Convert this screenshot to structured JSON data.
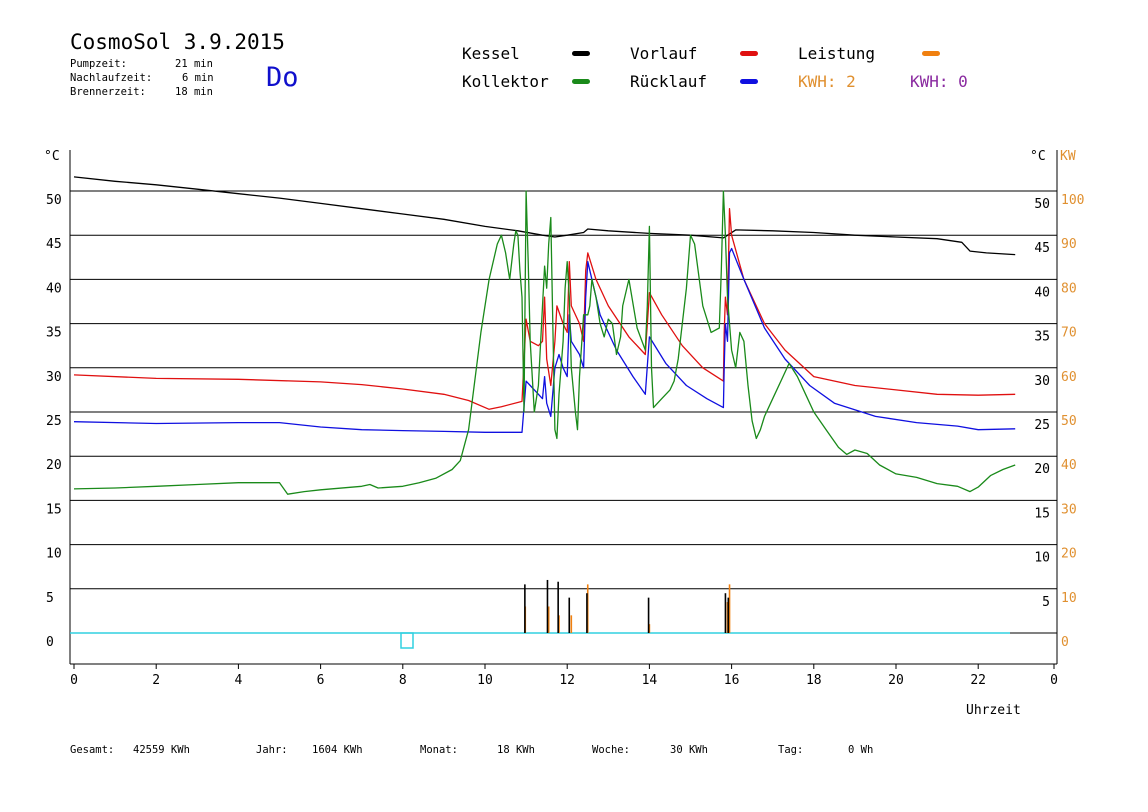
{
  "header": {
    "title": "CosmoSol 3.9.2015",
    "day": "Do",
    "stats": [
      {
        "label": "Pumpzeit:",
        "value": "21 min"
      },
      {
        "label": "Nachlaufzeit:",
        "value": "6 min"
      },
      {
        "label": "Brennerzeit:",
        "value": "18 min"
      }
    ]
  },
  "legend": {
    "kessel": {
      "label": "Kessel",
      "color": "#000000"
    },
    "vorlauf": {
      "label": "Vorlauf",
      "color": "#e01010"
    },
    "leistung": {
      "label": "Leistung",
      "color": "#f08010"
    },
    "kollektor": {
      "label": "Kollektor",
      "color": "#1a8a1a"
    },
    "ruecklauf": {
      "label": "Rücklauf",
      "color": "#1010e0"
    },
    "kwh_orange": {
      "label": "KWH: 2",
      "color": "#e09030"
    },
    "kwh_purple": {
      "label": "KWH: 0",
      "color": "#8a2aa0"
    }
  },
  "footer": {
    "gesamt": {
      "label": "Gesamt:",
      "value": "42559 KWh"
    },
    "jahr": {
      "label": "Jahr:",
      "value": "1604 KWh"
    },
    "monat": {
      "label": "Monat:",
      "value": "18 KWh"
    },
    "woche": {
      "label": "Woche:",
      "value": "30 KWh"
    },
    "tag": {
      "label": "Tag:",
      "value": "0 Wh"
    }
  },
  "chart_data": {
    "type": "line",
    "xlabel": "Uhrzeit",
    "left_unit": "°C",
    "right_unit_c": "°C",
    "right_unit_kw": "KW",
    "xlim": [
      0,
      23
    ],
    "ylim": [
      0,
      50
    ],
    "right_kw_lim": [
      0,
      100
    ],
    "x_ticks": [
      "0",
      "2",
      "4",
      "6",
      "8",
      "10",
      "12",
      "14",
      "16",
      "18",
      "20",
      "22",
      "0"
    ],
    "x_tick_values": [
      0,
      2,
      4,
      6,
      8,
      10,
      12,
      14,
      16,
      18,
      20,
      22,
      23.5
    ],
    "y_ticks": [
      "0",
      "5",
      "10",
      "15",
      "20",
      "25",
      "30",
      "35",
      "40",
      "45",
      "50"
    ],
    "y_tick_values": [
      0,
      5,
      10,
      15,
      20,
      25,
      30,
      35,
      40,
      45,
      50
    ],
    "right_c_ticks": [
      "5",
      "10",
      "15",
      "20",
      "25",
      "30",
      "35",
      "40",
      "45",
      "50"
    ],
    "right_c_tick_values": [
      5,
      10,
      15,
      20,
      25,
      30,
      35,
      40,
      45,
      50
    ],
    "right_kw_ticks": [
      "0",
      "10",
      "20",
      "30",
      "40",
      "50",
      "60",
      "70",
      "80",
      "90",
      "100"
    ],
    "grid": true,
    "series": [
      {
        "name": "Kessel",
        "color": "#000000",
        "points": [
          [
            0,
            51.6
          ],
          [
            1,
            51.1
          ],
          [
            2,
            50.7
          ],
          [
            3,
            50.2
          ],
          [
            4,
            49.7
          ],
          [
            5,
            49.2
          ],
          [
            6,
            48.6
          ],
          [
            7,
            48
          ],
          [
            8,
            47.4
          ],
          [
            9,
            46.8
          ],
          [
            10,
            46
          ],
          [
            10.8,
            45.5
          ],
          [
            11.4,
            45
          ],
          [
            11.7,
            44.8
          ],
          [
            12,
            45
          ],
          [
            12.4,
            45.3
          ],
          [
            12.5,
            45.7
          ],
          [
            13,
            45.5
          ],
          [
            14,
            45.2
          ],
          [
            15,
            45
          ],
          [
            15.8,
            44.7
          ],
          [
            16.1,
            45.6
          ],
          [
            17,
            45.5
          ],
          [
            18,
            45.3
          ],
          [
            19,
            45
          ],
          [
            20,
            44.8
          ],
          [
            21,
            44.6
          ],
          [
            21.6,
            44.2
          ],
          [
            21.8,
            43.2
          ],
          [
            22.2,
            43
          ],
          [
            22.9,
            42.8
          ]
        ]
      },
      {
        "name": "Vorlauf",
        "color": "#e01010",
        "points": [
          [
            0,
            29.2
          ],
          [
            2,
            28.8
          ],
          [
            4,
            28.7
          ],
          [
            6,
            28.4
          ],
          [
            7,
            28.1
          ],
          [
            8,
            27.6
          ],
          [
            9,
            27
          ],
          [
            9.6,
            26.3
          ],
          [
            10.1,
            25.3
          ],
          [
            10.4,
            25.6
          ],
          [
            10.9,
            26.2
          ],
          [
            11,
            35.5
          ],
          [
            11.1,
            33
          ],
          [
            11.3,
            32.5
          ],
          [
            11.4,
            33
          ],
          [
            11.45,
            38
          ],
          [
            11.5,
            31
          ],
          [
            11.6,
            28
          ],
          [
            11.7,
            33
          ],
          [
            11.75,
            37
          ],
          [
            11.9,
            35
          ],
          [
            12,
            34
          ],
          [
            12.05,
            42
          ],
          [
            12.1,
            37
          ],
          [
            12.3,
            35
          ],
          [
            12.4,
            33
          ],
          [
            12.45,
            41
          ],
          [
            12.5,
            43
          ],
          [
            12.7,
            40
          ],
          [
            13,
            37
          ],
          [
            13.5,
            33.5
          ],
          [
            13.9,
            31.5
          ],
          [
            14,
            38.5
          ],
          [
            14.3,
            36
          ],
          [
            14.8,
            32.5
          ],
          [
            15.3,
            30
          ],
          [
            15.8,
            28.5
          ],
          [
            15.82,
            34
          ],
          [
            15.85,
            38
          ],
          [
            15.9,
            36
          ],
          [
            15.95,
            48
          ],
          [
            16,
            45
          ],
          [
            16.3,
            40
          ],
          [
            16.8,
            35
          ],
          [
            17.3,
            32
          ],
          [
            18,
            29
          ],
          [
            19,
            28
          ],
          [
            20,
            27.5
          ],
          [
            21,
            27
          ],
          [
            22,
            26.9
          ],
          [
            22.9,
            27
          ]
        ]
      },
      {
        "name": "Rücklauf",
        "color": "#1010e0",
        "points": [
          [
            0,
            23.9
          ],
          [
            2,
            23.7
          ],
          [
            4,
            23.8
          ],
          [
            5,
            23.8
          ],
          [
            6,
            23.3
          ],
          [
            7,
            23
          ],
          [
            8,
            22.9
          ],
          [
            9,
            22.8
          ],
          [
            10,
            22.7
          ],
          [
            10.9,
            22.7
          ],
          [
            11,
            28.5
          ],
          [
            11.1,
            28
          ],
          [
            11.4,
            26.5
          ],
          [
            11.45,
            29
          ],
          [
            11.5,
            26
          ],
          [
            11.6,
            24.5
          ],
          [
            11.7,
            30
          ],
          [
            11.8,
            31.5
          ],
          [
            11.9,
            30
          ],
          [
            12,
            29
          ],
          [
            12.05,
            36
          ],
          [
            12.1,
            33
          ],
          [
            12.3,
            31.5
          ],
          [
            12.4,
            30
          ],
          [
            12.45,
            38
          ],
          [
            12.5,
            42
          ],
          [
            12.8,
            36
          ],
          [
            13.2,
            32
          ],
          [
            13.6,
            29
          ],
          [
            13.9,
            27
          ],
          [
            14,
            33.5
          ],
          [
            14.4,
            30.5
          ],
          [
            14.9,
            28
          ],
          [
            15.4,
            26.5
          ],
          [
            15.8,
            25.5
          ],
          [
            15.82,
            30
          ],
          [
            15.85,
            35
          ],
          [
            15.9,
            33
          ],
          [
            15.95,
            43
          ],
          [
            16,
            43.5
          ],
          [
            16.3,
            40
          ],
          [
            16.8,
            34.5
          ],
          [
            17.3,
            31
          ],
          [
            17.9,
            28
          ],
          [
            18.5,
            26
          ],
          [
            19.5,
            24.5
          ],
          [
            20.5,
            23.8
          ],
          [
            21.5,
            23.4
          ],
          [
            22,
            23
          ],
          [
            22.9,
            23.1
          ]
        ]
      },
      {
        "name": "Kollektor",
        "color": "#1a8a1a",
        "points": [
          [
            0,
            16.3
          ],
          [
            1,
            16.4
          ],
          [
            2,
            16.6
          ],
          [
            3,
            16.8
          ],
          [
            4,
            17
          ],
          [
            5,
            17
          ],
          [
            5.2,
            15.7
          ],
          [
            5.6,
            16
          ],
          [
            6,
            16.2
          ],
          [
            7,
            16.6
          ],
          [
            7.2,
            16.8
          ],
          [
            7.4,
            16.4
          ],
          [
            8,
            16.6
          ],
          [
            8.4,
            17
          ],
          [
            8.8,
            17.5
          ],
          [
            9.2,
            18.5
          ],
          [
            9.4,
            19.5
          ],
          [
            9.6,
            23
          ],
          [
            9.9,
            34
          ],
          [
            10.1,
            40
          ],
          [
            10.3,
            44
          ],
          [
            10.4,
            45
          ],
          [
            10.5,
            43
          ],
          [
            10.6,
            40
          ],
          [
            10.7,
            44
          ],
          [
            10.75,
            45.5
          ],
          [
            10.8,
            45
          ],
          [
            10.85,
            41
          ],
          [
            10.9,
            38
          ],
          [
            10.95,
            25
          ],
          [
            11,
            50
          ],
          [
            11.05,
            42
          ],
          [
            11.1,
            33
          ],
          [
            11.2,
            25
          ],
          [
            11.3,
            28
          ],
          [
            11.4,
            37
          ],
          [
            11.45,
            41.5
          ],
          [
            11.5,
            39
          ],
          [
            11.55,
            44
          ],
          [
            11.6,
            47
          ],
          [
            11.65,
            35
          ],
          [
            11.7,
            23
          ],
          [
            11.75,
            22
          ],
          [
            11.8,
            27
          ],
          [
            11.9,
            33
          ],
          [
            11.95,
            39
          ],
          [
            12,
            42
          ],
          [
            12.05,
            38
          ],
          [
            12.1,
            30
          ],
          [
            12.2,
            25
          ],
          [
            12.25,
            23
          ],
          [
            12.3,
            29
          ],
          [
            12.4,
            36
          ],
          [
            12.5,
            36
          ],
          [
            12.55,
            37
          ],
          [
            12.6,
            40
          ],
          [
            12.7,
            38
          ],
          [
            12.8,
            35
          ],
          [
            12.9,
            33.5
          ],
          [
            13,
            35.5
          ],
          [
            13.1,
            35
          ],
          [
            13.2,
            31.5
          ],
          [
            13.3,
            33.5
          ],
          [
            13.35,
            37
          ],
          [
            13.5,
            40
          ],
          [
            13.7,
            34.5
          ],
          [
            13.9,
            32
          ],
          [
            13.95,
            37
          ],
          [
            14,
            46
          ],
          [
            14.05,
            30
          ],
          [
            14.1,
            25.5
          ],
          [
            14.3,
            26.5
          ],
          [
            14.5,
            27.5
          ],
          [
            14.6,
            28.5
          ],
          [
            14.7,
            31
          ],
          [
            14.9,
            39
          ],
          [
            15,
            45
          ],
          [
            15.1,
            44
          ],
          [
            15.3,
            37
          ],
          [
            15.5,
            34
          ],
          [
            15.7,
            34.5
          ],
          [
            15.75,
            41
          ],
          [
            15.8,
            50
          ],
          [
            15.85,
            45
          ],
          [
            15.9,
            38
          ],
          [
            15.95,
            35
          ],
          [
            16,
            32
          ],
          [
            16.1,
            30
          ],
          [
            16.2,
            34
          ],
          [
            16.3,
            33
          ],
          [
            16.4,
            28
          ],
          [
            16.5,
            24
          ],
          [
            16.6,
            22
          ],
          [
            16.7,
            23
          ],
          [
            16.8,
            24.5
          ],
          [
            17,
            26.5
          ],
          [
            17.2,
            28.5
          ],
          [
            17.4,
            30.5
          ],
          [
            17.6,
            29
          ],
          [
            17.8,
            27
          ],
          [
            18,
            25
          ],
          [
            18.3,
            23
          ],
          [
            18.6,
            21
          ],
          [
            18.8,
            20.2
          ],
          [
            19,
            20.7
          ],
          [
            19.3,
            20.3
          ],
          [
            19.6,
            19
          ],
          [
            20,
            18
          ],
          [
            20.5,
            17.6
          ],
          [
            21,
            16.9
          ],
          [
            21.5,
            16.6
          ],
          [
            21.8,
            16
          ],
          [
            22,
            16.5
          ],
          [
            22.3,
            17.8
          ],
          [
            22.6,
            18.5
          ],
          [
            22.9,
            19
          ]
        ]
      },
      {
        "name": "Leistung",
        "color": "#f08010",
        "bars": [
          [
            10.98,
            3
          ],
          [
            11.55,
            3
          ],
          [
            11.8,
            2
          ],
          [
            12.1,
            2
          ],
          [
            12.5,
            5.5
          ],
          [
            14,
            1
          ],
          [
            15.9,
            3.5
          ],
          [
            15.95,
            5.5
          ]
        ]
      },
      {
        "name": "Brenner",
        "color": "#000000",
        "bars": [
          [
            10.97,
            5.5
          ],
          [
            11.52,
            6
          ],
          [
            11.78,
            5.8
          ],
          [
            12.05,
            4
          ],
          [
            12.48,
            4.5
          ],
          [
            13.98,
            4
          ],
          [
            15.85,
            4.5
          ],
          [
            15.92,
            4
          ]
        ]
      }
    ]
  }
}
